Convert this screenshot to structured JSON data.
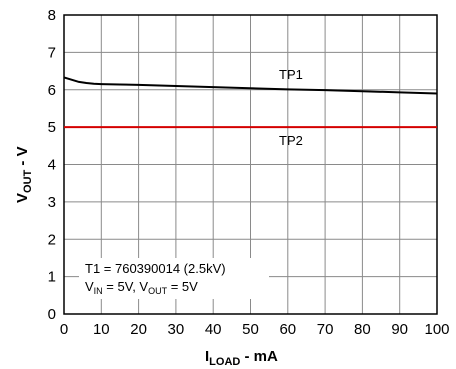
{
  "chart_data": {
    "type": "line",
    "xlabel": {
      "main": "I",
      "sub": "LOAD",
      "tail": " - mA"
    },
    "ylabel": {
      "main": "V",
      "sub": "OUT",
      "tail": " - V"
    },
    "xlim": [
      0,
      100
    ],
    "ylim": [
      0,
      8
    ],
    "x_ticks": [
      0,
      10,
      20,
      30,
      40,
      50,
      60,
      70,
      80,
      90,
      100
    ],
    "y_ticks": [
      0,
      1,
      2,
      3,
      4,
      5,
      6,
      7,
      8
    ],
    "grid": true,
    "series": [
      {
        "name": "TP1",
        "color": "#000000",
        "x": [
          0,
          2,
          4,
          6,
          8,
          10,
          15,
          20,
          30,
          40,
          50,
          60,
          70,
          80,
          90,
          100
        ],
        "y": [
          6.33,
          6.27,
          6.21,
          6.18,
          6.16,
          6.15,
          6.14,
          6.13,
          6.1,
          6.07,
          6.04,
          6.01,
          5.99,
          5.96,
          5.93,
          5.9
        ]
      },
      {
        "name": "TP2",
        "color": "#d40000",
        "x": [
          0,
          100
        ],
        "y": [
          5.0,
          5.0
        ]
      }
    ],
    "annotations": {
      "line1": "T1 = 760390014 (2.5kV)",
      "line2": [
        {
          "main": "V",
          "sub": "IN",
          "tail": " = 5V, "
        },
        {
          "main": "V",
          "sub": "OUT",
          "tail": " = 5V"
        }
      ]
    }
  }
}
